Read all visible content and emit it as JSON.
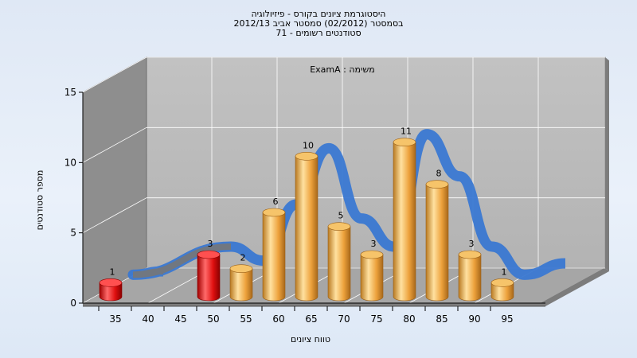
{
  "chart_data": {
    "type": "bar",
    "title_lines": [
      "היסטוגרמת ציונים בקורס - פיזיולוגיה",
      "בסמסטר (02/2012) סמסטר אביב 2012/13",
      "סטודנטים רשומים - 71"
    ],
    "annotation": "משימה : ExamA",
    "xlabel": "טווח ציונים",
    "ylabel": "מספר סטודנטים",
    "ylim": [
      0,
      15
    ],
    "yticks": [
      0,
      5,
      10,
      15
    ],
    "xticks": [
      35,
      40,
      45,
      50,
      55,
      60,
      65,
      70,
      75,
      80,
      85,
      90,
      95
    ],
    "grid": true,
    "bars": [
      {
        "x": 35,
        "value": 1,
        "color": "red"
      },
      {
        "x": 50,
        "value": 3,
        "color": "red"
      },
      {
        "x": 55,
        "value": 2,
        "color": "orange"
      },
      {
        "x": 60,
        "value": 6,
        "color": "orange"
      },
      {
        "x": 65,
        "value": 10,
        "color": "orange"
      },
      {
        "x": 70,
        "value": 5,
        "color": "orange"
      },
      {
        "x": 75,
        "value": 3,
        "color": "orange"
      },
      {
        "x": 80,
        "value": 11,
        "color": "orange"
      },
      {
        "x": 85,
        "value": 8,
        "color": "orange"
      },
      {
        "x": 90,
        "value": 3,
        "color": "orange"
      },
      {
        "x": 95,
        "value": 1,
        "color": "orange"
      }
    ],
    "colors": {
      "fail_bar": "#e01010",
      "pass_bar": "#f0a840",
      "curve": "#3a78d2",
      "curve_low": "#777777",
      "back_wall": "#b9b9b9",
      "side_wall": "#8e8e8e",
      "floor": "#a6a6a6"
    }
  }
}
